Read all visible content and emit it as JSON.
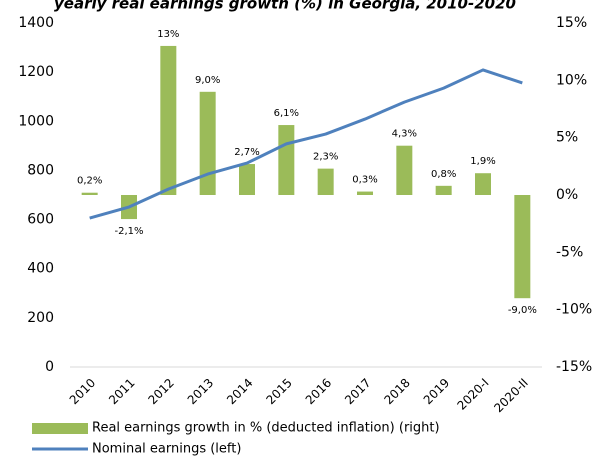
{
  "chart_data": {
    "type": "bar_line",
    "title": "yearly real earnings growth (%) in Georgia, 2010-2020",
    "categories": [
      "2010",
      "2011",
      "2012",
      "2013",
      "2014",
      "2015",
      "2016",
      "2017",
      "2018",
      "2019",
      "2020-I",
      "2020-II"
    ],
    "series": [
      {
        "name": "Real earnings growth in % (deducted inflation) (right)",
        "type": "bar",
        "axis": "y2",
        "color": "#9bbb59",
        "values": [
          0.2,
          -2.1,
          13,
          9.0,
          2.7,
          6.1,
          2.3,
          0.3,
          4.3,
          0.8,
          1.9,
          -9.0
        ],
        "value_labels": [
          "0,2%",
          "-2,1%",
          "13%",
          "9,0%",
          "2,7%",
          "6,1%",
          "2,3%",
          "0,3%",
          "4,3%",
          "0,8%",
          "1,9%",
          "-9,0%"
        ]
      },
      {
        "name": "Nominal earnings (left)",
        "type": "line",
        "axis": "y",
        "color": "#4f81bd",
        "values": [
          606,
          651,
          724,
          785,
          830,
          908,
          948,
          1009,
          1078,
          1135,
          1209,
          1156
        ]
      }
    ],
    "ylim": [
      0,
      1400
    ],
    "yticks": [
      0,
      200,
      400,
      600,
      800,
      1000,
      1200,
      1400
    ],
    "y2lim": [
      -15,
      15
    ],
    "y2ticks": [
      {
        "value": -15,
        "label": "-15%"
      },
      {
        "value": -10,
        "label": "-10%"
      },
      {
        "value": -5,
        "label": "-5%"
      },
      {
        "value": 0,
        "label": "0%"
      },
      {
        "value": 5,
        "label": "5%"
      },
      {
        "value": 10,
        "label": "10%"
      },
      {
        "value": 15,
        "label": "15%"
      }
    ],
    "legend": "bottom"
  }
}
